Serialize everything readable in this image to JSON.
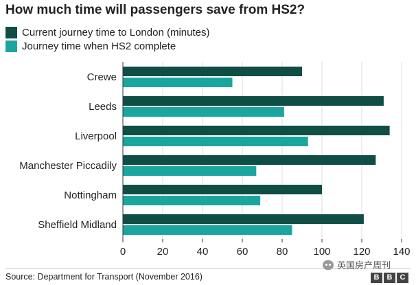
{
  "colors": {
    "current": "#0f4d45",
    "hs2": "#1aa69e",
    "grid": "#dddddd",
    "axis": "#333333",
    "text": "#222222"
  },
  "legend": [
    {
      "label": "Current journey time to London (minutes)",
      "color": "#0f4d45"
    },
    {
      "label": "Journey time when HS2 complete",
      "color": "#1aa69e"
    }
  ],
  "source": "Source: Department for Transport (November 2016)",
  "watermark": "英国房产周刊",
  "logo": {
    "letters": [
      "B",
      "B",
      "C"
    ]
  },
  "chart_data": {
    "type": "bar",
    "orientation": "horizontal",
    "title": "How much time will passengers save from HS2?",
    "categories": [
      "Crewe",
      "Leeds",
      "Liverpool",
      "Manchester Piccadily",
      "Nottingham",
      "Sheffield Midland"
    ],
    "series": [
      {
        "name": "Current journey time to London (minutes)",
        "values": [
          90,
          131,
          134,
          127,
          100,
          121
        ]
      },
      {
        "name": "Journey time when HS2 complete",
        "values": [
          55,
          81,
          93,
          67,
          69,
          85
        ]
      }
    ],
    "xlim": [
      0,
      140
    ],
    "xticks": [
      0,
      20,
      40,
      60,
      80,
      100,
      120,
      140
    ],
    "grid": true,
    "legend_position": "top-left"
  }
}
